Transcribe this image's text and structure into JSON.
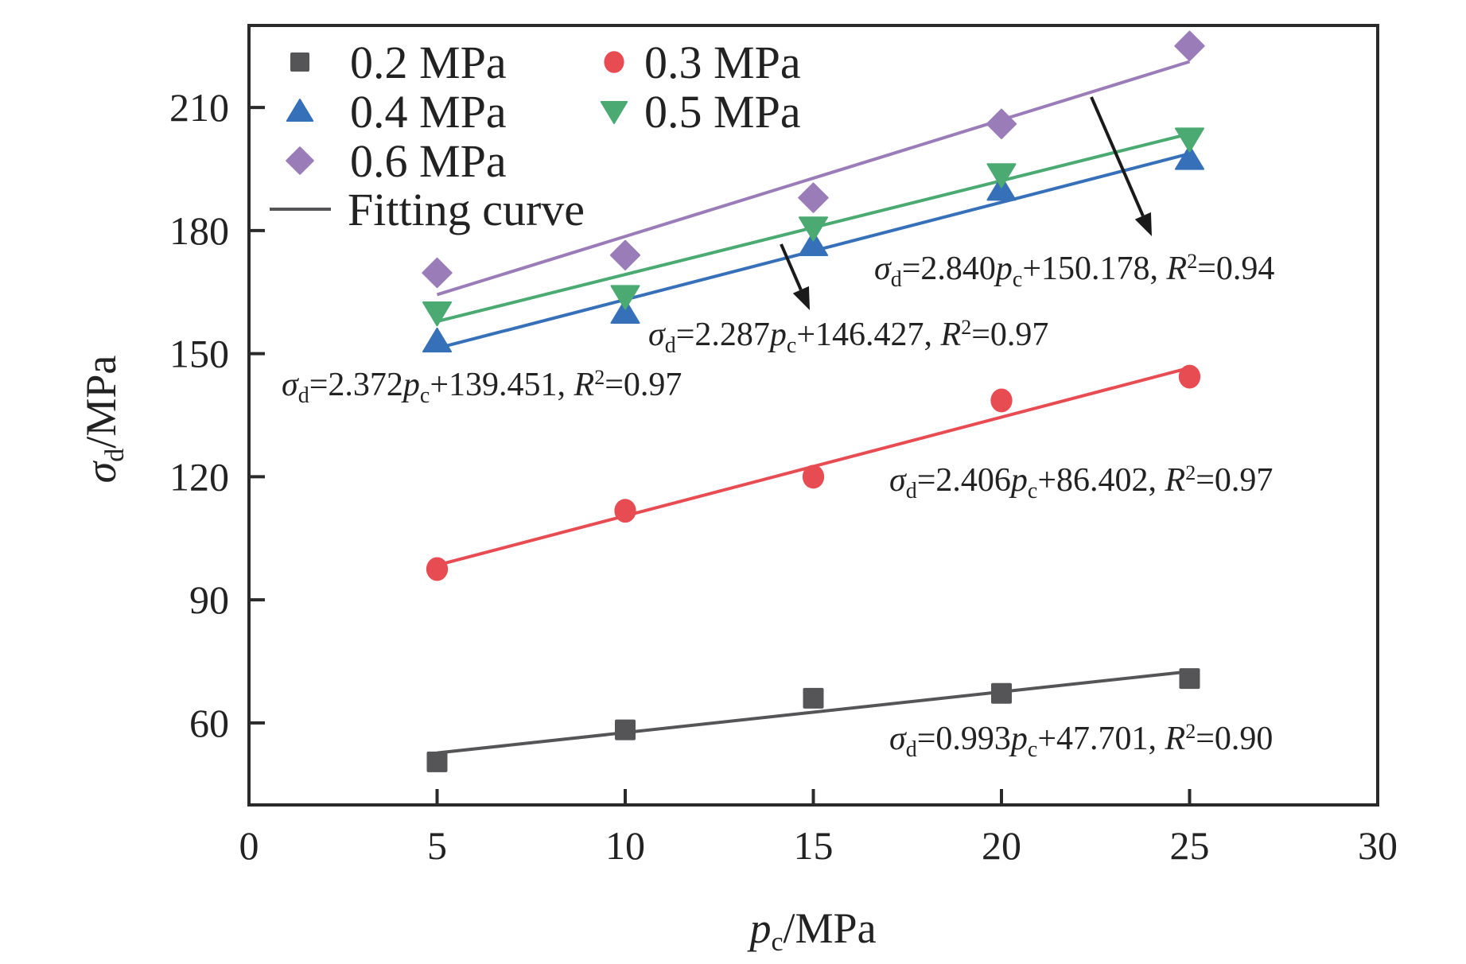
{
  "chart_data": {
    "type": "scatter",
    "title": "",
    "xlabel": {
      "main": "p",
      "sub": "c",
      "unit": "/MPa"
    },
    "ylabel": {
      "main": "σ",
      "sub": "d",
      "unit": "/MPa"
    },
    "xlim": [
      0,
      30
    ],
    "ylim": [
      40,
      230
    ],
    "x_ticks": [
      0,
      5,
      10,
      15,
      20,
      25,
      30
    ],
    "x_tick_labels": [
      "0",
      "5",
      "10",
      "15",
      "20",
      "25",
      "30"
    ],
    "y_ticks": [
      60,
      90,
      120,
      150,
      180,
      210
    ],
    "y_tick_labels": [
      "60",
      "90",
      "120",
      "150",
      "180",
      "210"
    ],
    "grid": false,
    "legend_position": "top-left",
    "legend_fit_label": "Fitting curve",
    "x": [
      5,
      10,
      15,
      20,
      25
    ],
    "series": [
      {
        "name": "0.2 MPa",
        "marker": "square",
        "color": "#555558",
        "values": [
          50.5,
          58.3,
          66.0,
          67.2,
          70.8
        ],
        "fit": {
          "slope": 0.993,
          "intercept": 47.701,
          "r2": "0.90"
        },
        "equation": {
          "coef": "0.993",
          "const": "47.701",
          "r2": "0.90"
        }
      },
      {
        "name": "0.3 MPa",
        "marker": "circle",
        "color": "#e84c53",
        "values": [
          97.5,
          111.7,
          120.0,
          138.6,
          144.4
        ],
        "fit": {
          "slope": 2.406,
          "intercept": 86.402,
          "r2": "0.97"
        },
        "equation": {
          "coef": "2.406",
          "const": "86.402",
          "r2": "0.97"
        }
      },
      {
        "name": "0.4 MPa",
        "marker": "triangle-up",
        "color": "#3570b8",
        "values": [
          153.0,
          160.0,
          176.5,
          190.0,
          197.5
        ],
        "fit": {
          "slope": 2.372,
          "intercept": 139.451,
          "r2": "0.97"
        },
        "equation": {
          "coef": "2.372",
          "const": "139.451",
          "r2": "0.97"
        }
      },
      {
        "name": "0.5 MPa",
        "marker": "triangle-down",
        "color": "#4aaa72",
        "values": [
          160.0,
          164.0,
          180.7,
          193.7,
          202.4
        ],
        "fit": {
          "slope": 2.287,
          "intercept": 146.427,
          "r2": "0.97"
        },
        "equation": {
          "coef": "2.287",
          "const": "146.427",
          "r2": "0.97"
        }
      },
      {
        "name": "0.6 MPa",
        "marker": "diamond",
        "color": "#9a7cb9",
        "values": [
          169.7,
          174.0,
          188.0,
          206.0,
          225.0
        ],
        "fit": {
          "slope": 2.84,
          "intercept": 150.178,
          "r2": "0.94"
        },
        "equation": {
          "coef": "2.840",
          "const": "150.178",
          "r2": "0.94"
        }
      }
    ],
    "equation_symbols": {
      "sigma": "σ",
      "d": "d",
      "p": "p",
      "c": "c",
      "R": "R",
      "sup2": "2",
      "eq": "=",
      "plus": "+",
      "comma": ", "
    }
  }
}
